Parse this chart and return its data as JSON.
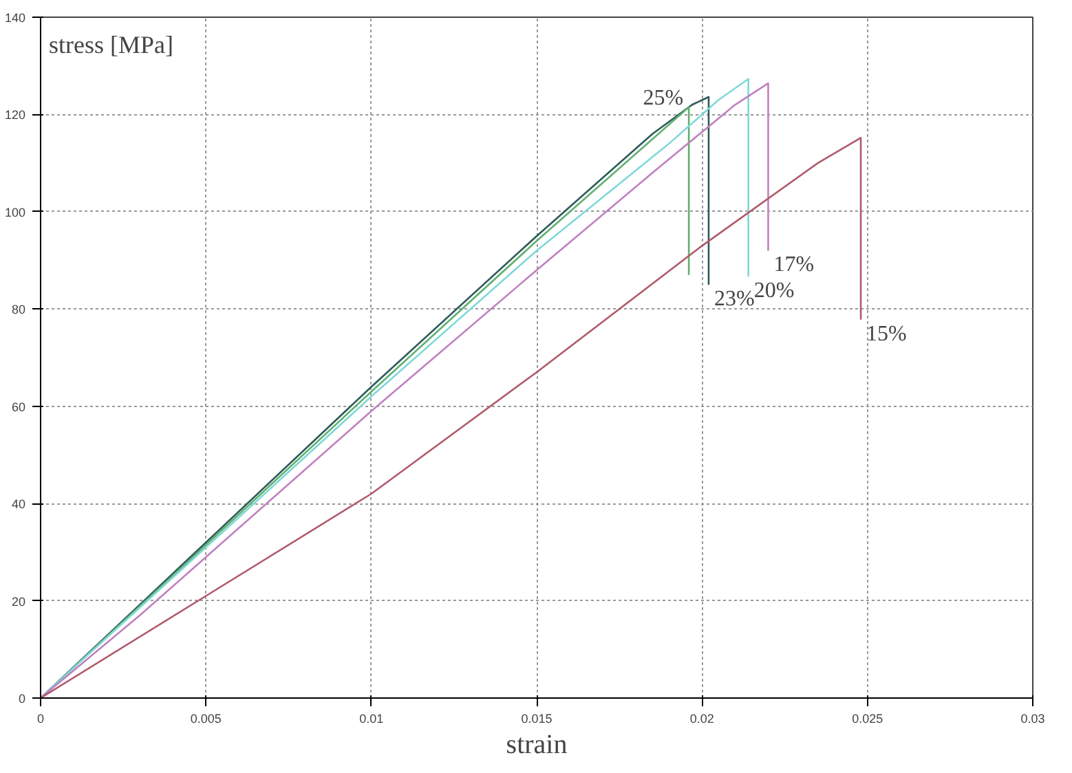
{
  "chart_data": {
    "type": "line",
    "xlabel": "strain",
    "ylabel": "stress [MPa]",
    "xlim": [
      0,
      0.03
    ],
    "ylim": [
      0,
      140
    ],
    "xticks": [
      0,
      0.005,
      0.01,
      0.015,
      0.02,
      0.025,
      0.03
    ],
    "yticks": [
      0,
      20,
      40,
      60,
      80,
      100,
      120,
      140
    ],
    "grid": true,
    "marker": "none",
    "line_style": "solid",
    "series": [
      {
        "name": "23%",
        "color": "#2e5a5a",
        "x": [
          0,
          0.005,
          0.01,
          0.015,
          0.0185,
          0.0197,
          0.0202,
          0.0202
        ],
        "values": [
          0,
          32,
          64,
          95,
          116,
          122,
          123.6,
          85
        ]
      },
      {
        "name": "25%",
        "color": "#5fb070",
        "x": [
          0,
          0.005,
          0.01,
          0.015,
          0.0196,
          0.0196
        ],
        "values": [
          0,
          31.5,
          63,
          94,
          121.5,
          87
        ]
      },
      {
        "name": "20%",
        "color": "#80d8d8",
        "x": [
          0,
          0.005,
          0.01,
          0.015,
          0.019,
          0.0205,
          0.0214,
          0.0214
        ],
        "values": [
          0,
          31,
          62,
          92,
          114,
          123,
          127.3,
          86.7
        ]
      },
      {
        "name": "17%",
        "color": "#c080c0",
        "x": [
          0,
          0.003,
          0.005,
          0.01,
          0.015,
          0.0185,
          0.021,
          0.022,
          0.022
        ],
        "values": [
          0,
          17,
          29,
          59,
          88,
          108,
          122,
          126.4,
          92
        ]
      },
      {
        "name": "15%",
        "color": "#b05a6a",
        "x": [
          0,
          0.005,
          0.01,
          0.015,
          0.02,
          0.0235,
          0.0248,
          0.0248
        ],
        "values": [
          0,
          21,
          42,
          67,
          93,
          110,
          115.2,
          77.8
        ]
      }
    ]
  }
}
